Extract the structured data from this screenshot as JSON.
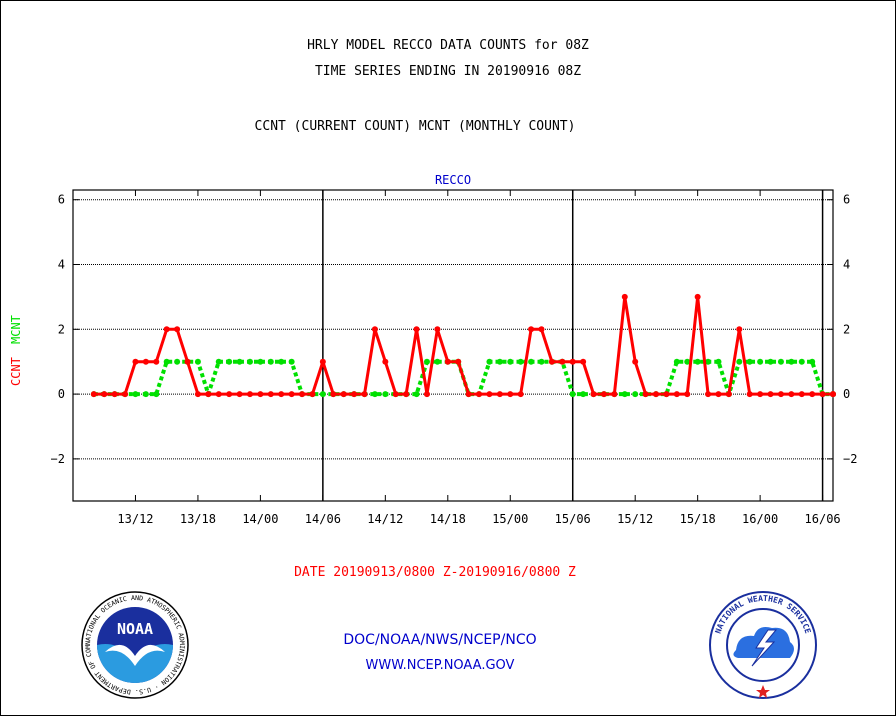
{
  "header": {
    "line1": "HRLY MODEL RECCO DATA COUNTS for 08Z",
    "line2": "TIME SERIES ENDING IN 20190916 08Z",
    "line3": "CCNT (CURRENT COUNT) MCNT (MONTHLY COUNT)"
  },
  "footer": {
    "date_range": "DATE 20190913/0800 Z-20190916/0800 Z",
    "org": "DOC/NOAA/NWS/NCEP/NCO",
    "url": "WWW.NCEP.NOAA.GOV",
    "noaa_logo_text": "NOAA",
    "noaa_ring_text": "NATIONAL OCEANIC AND ATMOSPHERIC ADMINISTRATION · U.S. DEPARTMENT OF COMMERCE",
    "nws_ring_text": "NATIONAL WEATHER SERVICE"
  },
  "colors": {
    "ccnt": "#ff0000",
    "mcnt": "#00e000",
    "panel_title": "#0000cc",
    "footer_blue": "#0000cc",
    "date_red": "#ff0000"
  },
  "chart_data": {
    "type": "line",
    "panel_title": "RECCO",
    "ylabel_ccnt": "CCNT",
    "ylabel_mcnt": "MCNT",
    "ylim": [
      -3.3,
      6.3
    ],
    "yticks": [
      -2,
      0,
      2,
      4,
      6
    ],
    "ytick_labels": [
      "−2",
      "0",
      "2",
      "4",
      "6"
    ],
    "grid_y": true,
    "xlim_hours": [
      -2,
      71
    ],
    "x_start": "2019-09-13 08Z",
    "x_end": "2019-09-16 08Z",
    "xticks": [
      {
        "hour": 4,
        "label": "13/12"
      },
      {
        "hour": 10,
        "label": "13/18"
      },
      {
        "hour": 16,
        "label": "14/00"
      },
      {
        "hour": 22,
        "label": "14/06"
      },
      {
        "hour": 28,
        "label": "14/12"
      },
      {
        "hour": 34,
        "label": "14/18"
      },
      {
        "hour": 40,
        "label": "15/00"
      },
      {
        "hour": 46,
        "label": "15/06"
      },
      {
        "hour": 52,
        "label": "15/12"
      },
      {
        "hour": 58,
        "label": "15/18"
      },
      {
        "hour": 64,
        "label": "16/00"
      },
      {
        "hour": 70,
        "label": "16/06"
      }
    ],
    "day_markers_hours": [
      22,
      46,
      70
    ],
    "series": [
      {
        "name": "CCNT",
        "x": [
          0,
          1,
          2,
          3,
          4,
          5,
          6,
          7,
          8,
          9,
          10,
          11,
          12,
          13,
          14,
          15,
          16,
          17,
          18,
          19,
          20,
          21,
          22,
          23,
          24,
          25,
          26,
          27,
          28,
          29,
          30,
          31,
          32,
          33,
          34,
          35,
          36,
          37,
          38,
          39,
          40,
          41,
          42,
          43,
          44,
          45,
          46,
          47,
          48,
          49,
          50,
          51,
          52,
          53,
          54,
          55,
          56,
          57,
          58,
          59,
          60,
          61,
          62,
          63,
          64,
          65,
          66,
          67,
          68,
          69,
          70,
          71,
          72
        ],
        "values": [
          0,
          0,
          0,
          0,
          1,
          1,
          1,
          2,
          2,
          1,
          0,
          0,
          0,
          0,
          0,
          0,
          0,
          0,
          0,
          0,
          0,
          0,
          1,
          0,
          0,
          0,
          0,
          2,
          1,
          0,
          0,
          2,
          0,
          2,
          1,
          1,
          0,
          0,
          0,
          0,
          0,
          0,
          2,
          2,
          1,
          1,
          1,
          1,
          0,
          0,
          0,
          3,
          1,
          0,
          0,
          0,
          0,
          0,
          3,
          0,
          0,
          0,
          2,
          0,
          0,
          0,
          0,
          0,
          0,
          0,
          0,
          0,
          0
        ]
      },
      {
        "name": "MCNT",
        "x": [
          0,
          1,
          2,
          3,
          4,
          5,
          6,
          7,
          8,
          9,
          10,
          11,
          12,
          13,
          14,
          15,
          16,
          17,
          18,
          19,
          20,
          21,
          22,
          23,
          24,
          25,
          26,
          27,
          28,
          29,
          30,
          31,
          32,
          33,
          34,
          35,
          36,
          37,
          38,
          39,
          40,
          41,
          42,
          43,
          44,
          45,
          46,
          47,
          48,
          49,
          50,
          51,
          52,
          53,
          54,
          55,
          56,
          57,
          58,
          59,
          60,
          61,
          62,
          63,
          64,
          65,
          66,
          67,
          68,
          69,
          70,
          71,
          72
        ],
        "values": [
          0,
          0,
          0,
          0,
          0,
          0,
          0,
          1,
          1,
          1,
          1,
          0,
          1,
          1,
          1,
          1,
          1,
          1,
          1,
          1,
          0,
          0,
          0,
          0,
          0,
          0,
          0,
          0,
          0,
          0,
          0,
          0,
          1,
          1,
          1,
          1,
          0,
          0,
          1,
          1,
          1,
          1,
          1,
          1,
          1,
          1,
          0,
          0,
          0,
          0,
          0,
          0,
          0,
          0,
          0,
          0,
          1,
          1,
          1,
          1,
          1,
          0,
          1,
          1,
          1,
          1,
          1,
          1,
          1,
          1,
          0,
          0,
          0
        ]
      }
    ]
  }
}
